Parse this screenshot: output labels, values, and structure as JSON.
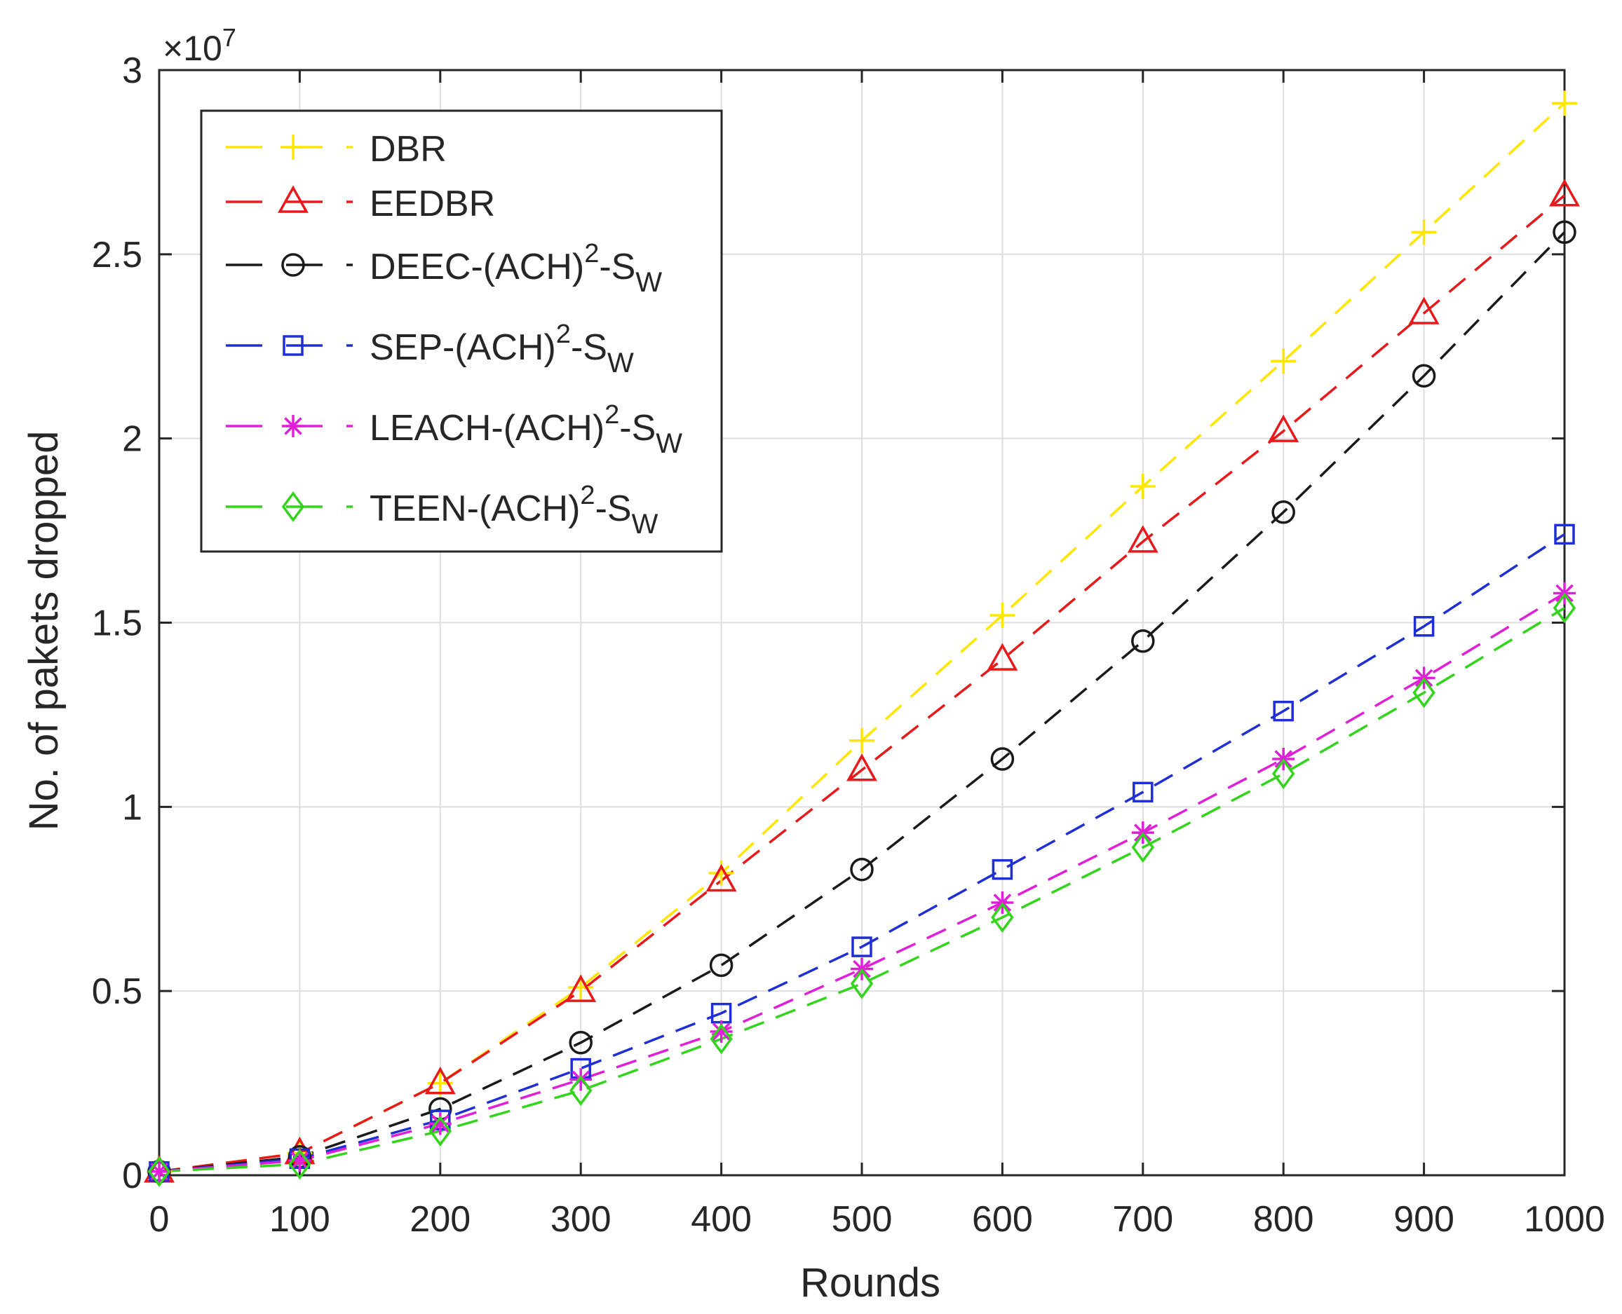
{
  "chart_data": {
    "type": "line",
    "title": "",
    "xlabel": "Rounds",
    "ylabel": "No. of pakets dropped",
    "y_exponent_label": "×10",
    "y_exponent_power": "7",
    "y_scale": 10000000,
    "xlim": [
      0,
      1000
    ],
    "ylim": [
      0,
      3
    ],
    "x_ticks": [
      0,
      100,
      200,
      300,
      400,
      500,
      600,
      700,
      800,
      900,
      1000
    ],
    "x_tick_labels": [
      "0",
      "100",
      "200",
      "300",
      "400",
      "500",
      "600",
      "700",
      "800",
      "900",
      "1000"
    ],
    "y_ticks": [
      0,
      0.5,
      1,
      1.5,
      2,
      2.5,
      3
    ],
    "y_tick_labels": [
      "0",
      "0.5",
      "1",
      "1.5",
      "2",
      "2.5",
      "3"
    ],
    "grid": true,
    "legend_position": "top-left",
    "x": [
      0,
      100,
      200,
      300,
      400,
      500,
      600,
      700,
      800,
      900,
      1000
    ],
    "series": [
      {
        "name": "DBR",
        "legend": {
          "main": "DBR"
        },
        "color": "#FFE600",
        "marker": "plus",
        "values": [
          0.01,
          0.06,
          0.25,
          0.51,
          0.82,
          1.18,
          1.52,
          1.87,
          2.21,
          2.56,
          2.91
        ]
      },
      {
        "name": "EEDBR",
        "legend": {
          "main": "EEDBR"
        },
        "color": "#E8191B",
        "marker": "triangle",
        "values": [
          0.01,
          0.06,
          0.25,
          0.5,
          0.8,
          1.1,
          1.4,
          1.72,
          2.02,
          2.34,
          2.66
        ]
      },
      {
        "name": "DEEC-(ACH)2-SW",
        "legend": {
          "main": "DEEC-(ACH)",
          "sup": "2",
          "mid": "-S",
          "sub": "W"
        },
        "color": "#1A1A1A",
        "marker": "circle",
        "values": [
          0.01,
          0.05,
          0.18,
          0.36,
          0.57,
          0.83,
          1.13,
          1.45,
          1.8,
          2.17,
          2.56
        ]
      },
      {
        "name": "SEP-(ACH)2-SW",
        "legend": {
          "main": "SEP-(ACH)",
          "sup": "2",
          "mid": "-S",
          "sub": "W"
        },
        "color": "#1F2FD6",
        "marker": "square",
        "values": [
          0.01,
          0.045,
          0.15,
          0.29,
          0.44,
          0.62,
          0.83,
          1.04,
          1.26,
          1.49,
          1.74
        ]
      },
      {
        "name": "LEACH-(ACH)2-SW",
        "legend": {
          "main": "LEACH-(ACH)",
          "sup": "2",
          "mid": "-S",
          "sub": "W"
        },
        "color": "#E020D8",
        "marker": "asterisk",
        "values": [
          0.01,
          0.04,
          0.14,
          0.26,
          0.39,
          0.56,
          0.74,
          0.93,
          1.13,
          1.35,
          1.58
        ]
      },
      {
        "name": "TEEN-(ACH)2-SW",
        "legend": {
          "main": "TEEN-(ACH)",
          "sup": "2",
          "mid": "-S",
          "sub": "W"
        },
        "color": "#33D41C",
        "marker": "diamond",
        "values": [
          0.01,
          0.03,
          0.12,
          0.23,
          0.37,
          0.52,
          0.7,
          0.89,
          1.09,
          1.31,
          1.54
        ]
      }
    ]
  }
}
